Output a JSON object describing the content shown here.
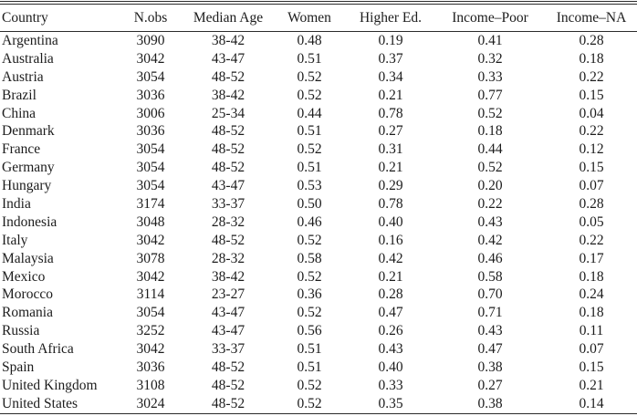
{
  "table": {
    "columns": [
      {
        "label": "Country",
        "align": "left"
      },
      {
        "label": "N.obs",
        "align": "center"
      },
      {
        "label": "Median Age",
        "align": "center"
      },
      {
        "label": "Women",
        "align": "center"
      },
      {
        "label": "Higher Ed.",
        "align": "center"
      },
      {
        "label": "Income–Poor",
        "align": "center"
      },
      {
        "label": "Income–NA",
        "align": "center"
      }
    ],
    "rows": [
      [
        "Argentina",
        "3090",
        "38-42",
        "0.48",
        "0.19",
        "0.41",
        "0.28"
      ],
      [
        "Australia",
        "3042",
        "43-47",
        "0.51",
        "0.37",
        "0.32",
        "0.18"
      ],
      [
        "Austria",
        "3054",
        "48-52",
        "0.52",
        "0.34",
        "0.33",
        "0.22"
      ],
      [
        "Brazil",
        "3036",
        "38-42",
        "0.52",
        "0.21",
        "0.77",
        "0.15"
      ],
      [
        "China",
        "3006",
        "25-34",
        "0.44",
        "0.78",
        "0.52",
        "0.04"
      ],
      [
        "Denmark",
        "3036",
        "48-52",
        "0.51",
        "0.27",
        "0.18",
        "0.22"
      ],
      [
        "France",
        "3054",
        "48-52",
        "0.52",
        "0.31",
        "0.44",
        "0.12"
      ],
      [
        "Germany",
        "3054",
        "48-52",
        "0.51",
        "0.21",
        "0.52",
        "0.15"
      ],
      [
        "Hungary",
        "3054",
        "43-47",
        "0.53",
        "0.29",
        "0.20",
        "0.07"
      ],
      [
        "India",
        "3174",
        "33-37",
        "0.50",
        "0.78",
        "0.22",
        "0.28"
      ],
      [
        "Indonesia",
        "3048",
        "28-32",
        "0.46",
        "0.40",
        "0.43",
        "0.05"
      ],
      [
        "Italy",
        "3042",
        "48-52",
        "0.52",
        "0.16",
        "0.42",
        "0.22"
      ],
      [
        "Malaysia",
        "3078",
        "28-32",
        "0.58",
        "0.42",
        "0.46",
        "0.17"
      ],
      [
        "Mexico",
        "3042",
        "38-42",
        "0.52",
        "0.21",
        "0.58",
        "0.18"
      ],
      [
        "Morocco",
        "3114",
        "23-27",
        "0.36",
        "0.28",
        "0.70",
        "0.24"
      ],
      [
        "Romania",
        "3054",
        "43-47",
        "0.52",
        "0.47",
        "0.71",
        "0.18"
      ],
      [
        "Russia",
        "3252",
        "43-47",
        "0.56",
        "0.26",
        "0.43",
        "0.11"
      ],
      [
        "South Africa",
        "3042",
        "33-37",
        "0.51",
        "0.43",
        "0.47",
        "0.07"
      ],
      [
        "Spain",
        "3036",
        "48-52",
        "0.51",
        "0.40",
        "0.38",
        "0.15"
      ],
      [
        "United Kingdom",
        "3108",
        "48-52",
        "0.52",
        "0.33",
        "0.27",
        "0.21"
      ],
      [
        "United States",
        "3024",
        "48-52",
        "0.52",
        "0.35",
        "0.38",
        "0.14"
      ]
    ]
  }
}
